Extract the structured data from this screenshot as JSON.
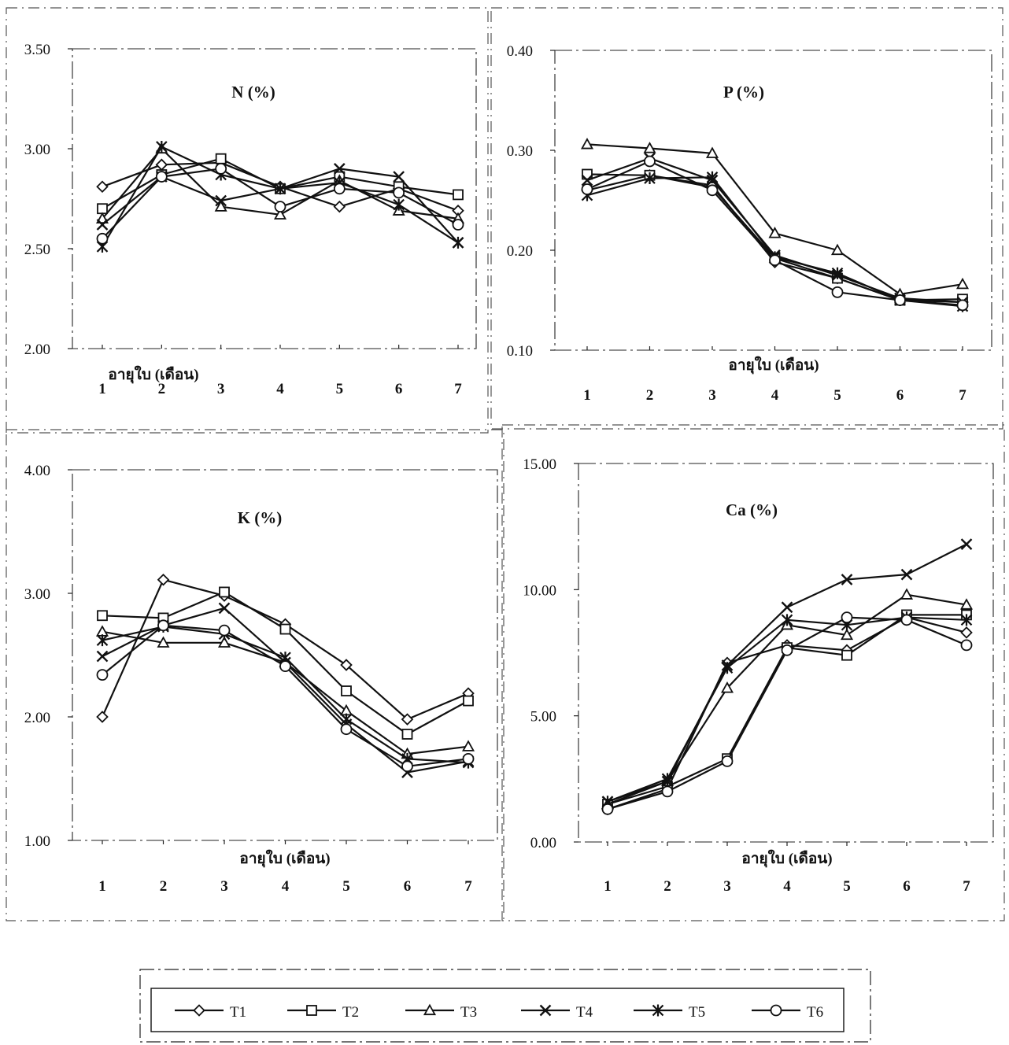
{
  "legend": {
    "items": [
      {
        "label": "T1",
        "marker": "diamond"
      },
      {
        "label": "T2",
        "marker": "square"
      },
      {
        "label": "T3",
        "marker": "triangle"
      },
      {
        "label": "T4",
        "marker": "x"
      },
      {
        "label": "T5",
        "marker": "asterisk"
      },
      {
        "label": "T6",
        "marker": "circle"
      }
    ]
  },
  "chart_data": [
    {
      "type": "line",
      "title": "N (%)",
      "xlabel": "อายุใบ (เดือน)",
      "ylabel": "",
      "categories": [
        "1",
        "2",
        "3",
        "4",
        "5",
        "6",
        "7"
      ],
      "ylim": [
        2.0,
        3.5
      ],
      "yticks": [
        "2.00",
        "2.50",
        "3.00",
        "3.50"
      ],
      "series": [
        {
          "name": "T1",
          "values": [
            2.81,
            2.92,
            2.93,
            2.81,
            2.71,
            2.8,
            2.69
          ]
        },
        {
          "name": "T2",
          "values": [
            2.7,
            2.87,
            2.95,
            2.8,
            2.86,
            2.81,
            2.77
          ]
        },
        {
          "name": "T3",
          "values": [
            2.65,
            3.0,
            2.71,
            2.67,
            2.84,
            2.69,
            2.65
          ]
        },
        {
          "name": "T4",
          "values": [
            2.62,
            2.86,
            2.74,
            2.8,
            2.9,
            2.86,
            2.53
          ]
        },
        {
          "name": "T5",
          "values": [
            2.51,
            3.01,
            2.87,
            2.8,
            2.83,
            2.72,
            2.53
          ]
        },
        {
          "name": "T6",
          "values": [
            2.55,
            2.86,
            2.9,
            2.71,
            2.8,
            2.78,
            2.62
          ]
        }
      ]
    },
    {
      "type": "line",
      "title": "P (%)",
      "xlabel": "อายุใบ (เดือน)",
      "ylabel": "",
      "categories": [
        "1",
        "2",
        "3",
        "4",
        "5",
        "6",
        "7"
      ],
      "ylim": [
        0.1,
        0.4
      ],
      "yticks": [
        "0.10",
        "0.20",
        "0.30",
        "0.40"
      ],
      "series": [
        {
          "name": "T1",
          "values": [
            0.26,
            0.275,
            0.265,
            0.188,
            0.172,
            0.15,
            0.148
          ]
        },
        {
          "name": "T2",
          "values": [
            0.276,
            0.275,
            0.263,
            0.192,
            0.172,
            0.15,
            0.151
          ]
        },
        {
          "name": "T3",
          "values": [
            0.306,
            0.302,
            0.297,
            0.217,
            0.2,
            0.156,
            0.166
          ]
        },
        {
          "name": "T4",
          "values": [
            0.27,
            0.292,
            0.27,
            0.195,
            0.175,
            0.152,
            0.148
          ]
        },
        {
          "name": "T5",
          "values": [
            0.255,
            0.272,
            0.273,
            0.193,
            0.177,
            0.15,
            0.144
          ]
        },
        {
          "name": "T6",
          "values": [
            0.261,
            0.289,
            0.26,
            0.19,
            0.158,
            0.15,
            0.145
          ]
        }
      ]
    },
    {
      "type": "line",
      "title": "K (%)",
      "xlabel": "อายุใบ (เดือน)",
      "ylabel": "",
      "categories": [
        "1",
        "2",
        "3",
        "4",
        "5",
        "6",
        "7"
      ],
      "ylim": [
        1.0,
        4.0
      ],
      "yticks": [
        "1.00",
        "2.00",
        "3.00",
        "4.00"
      ],
      "series": [
        {
          "name": "T1",
          "values": [
            2.0,
            3.11,
            2.98,
            2.75,
            2.42,
            1.98,
            2.19
          ]
        },
        {
          "name": "T2",
          "values": [
            2.82,
            2.8,
            3.01,
            2.71,
            2.21,
            1.86,
            2.13
          ]
        },
        {
          "name": "T3",
          "values": [
            2.69,
            2.6,
            2.6,
            2.44,
            2.05,
            1.7,
            1.76
          ]
        },
        {
          "name": "T4",
          "values": [
            2.49,
            2.74,
            2.88,
            2.44,
            1.94,
            1.55,
            1.64
          ]
        },
        {
          "name": "T5",
          "values": [
            2.62,
            2.73,
            2.67,
            2.48,
            1.98,
            1.66,
            1.63
          ]
        },
        {
          "name": "T6",
          "values": [
            2.34,
            2.74,
            2.7,
            2.41,
            1.9,
            1.6,
            1.66
          ]
        }
      ]
    },
    {
      "type": "line",
      "title": "Ca (%)",
      "xlabel": "อายุใบ (เดือน)",
      "ylabel": "",
      "categories": [
        "1",
        "2",
        "3",
        "4",
        "5",
        "6",
        "7"
      ],
      "ylim": [
        0.0,
        15.0
      ],
      "yticks": [
        "0.00",
        "5.00",
        "10.00",
        "15.00"
      ],
      "series": [
        {
          "name": "T1",
          "values": [
            1.3,
            2.1,
            7.1,
            7.8,
            7.6,
            8.9,
            8.3
          ]
        },
        {
          "name": "T2",
          "values": [
            1.5,
            2.2,
            3.3,
            7.7,
            7.4,
            9.0,
            9.0
          ]
        },
        {
          "name": "T3",
          "values": [
            1.5,
            2.4,
            6.1,
            8.6,
            8.2,
            9.8,
            9.4
          ]
        },
        {
          "name": "T4",
          "values": [
            1.6,
            2.4,
            7.0,
            9.3,
            10.4,
            10.6,
            11.8
          ]
        },
        {
          "name": "T5",
          "values": [
            1.6,
            2.5,
            6.9,
            8.8,
            8.6,
            8.9,
            8.8
          ]
        },
        {
          "name": "T6",
          "values": [
            1.3,
            2.0,
            3.2,
            7.6,
            8.9,
            8.8,
            7.8
          ]
        }
      ]
    }
  ]
}
